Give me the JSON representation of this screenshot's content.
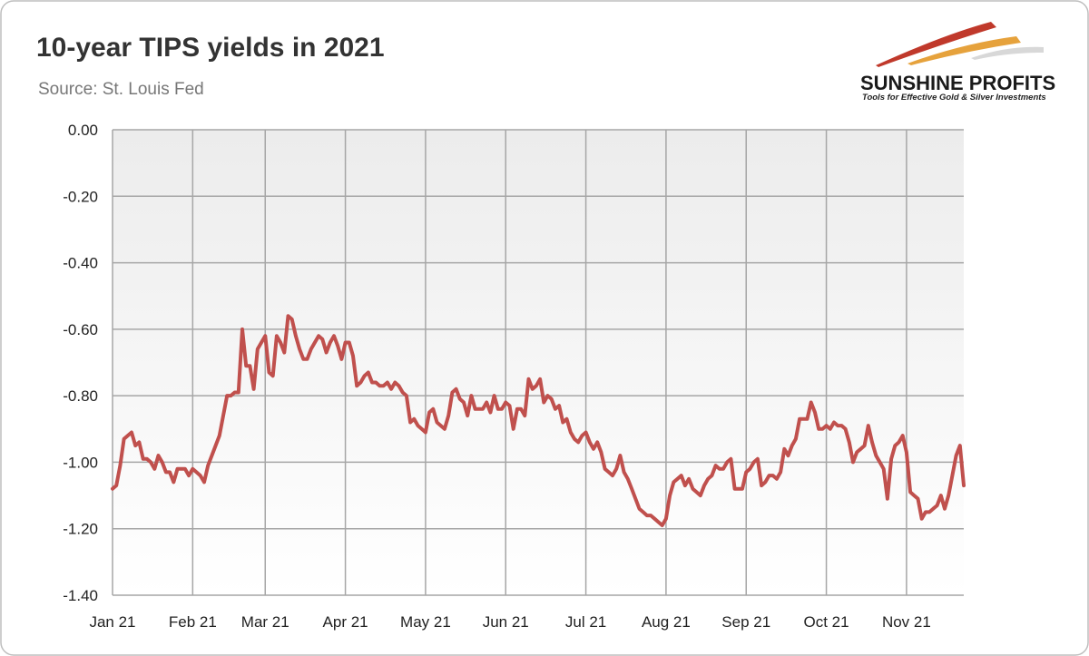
{
  "chart_data": {
    "type": "line",
    "title": "10-year TIPS yields in 2021",
    "subtitle": "Source: St. Louis Fed",
    "logo": "SUNSHINE PROFITS",
    "tagline": "Tools for Effective Gold & Silver Investments",
    "color": "#c0504d",
    "grid": true,
    "values": [
      -1.08,
      -1.07,
      -1.01,
      -0.93,
      -0.92,
      -0.91,
      -0.95,
      -0.94,
      -0.99,
      -0.99,
      -1.0,
      -1.02,
      -0.98,
      -1.0,
      -1.03,
      -1.03,
      -1.06,
      -1.02,
      -1.02,
      -1.02,
      -1.04,
      -1.02,
      -1.03,
      -1.04,
      -1.06,
      -1.01,
      -0.98,
      -0.95,
      -0.92,
      -0.86,
      -0.8,
      -0.8,
      -0.79,
      -0.79,
      -0.6,
      -0.71,
      -0.71,
      -0.78,
      -0.66,
      -0.64,
      -0.62,
      -0.73,
      -0.74,
      -0.62,
      -0.64,
      -0.67,
      -0.56,
      -0.57,
      -0.62,
      -0.66,
      -0.69,
      -0.69,
      -0.66,
      -0.64,
      -0.62,
      -0.63,
      -0.67,
      -0.64,
      -0.62,
      -0.65,
      -0.69,
      -0.64,
      -0.64,
      -0.68,
      -0.77,
      -0.76,
      -0.74,
      -0.73,
      -0.76,
      -0.76,
      -0.77,
      -0.77,
      -0.76,
      -0.78,
      -0.76,
      -0.77,
      -0.79,
      -0.8,
      -0.88,
      -0.87,
      -0.89,
      -0.9,
      -0.91,
      -0.85,
      -0.84,
      -0.88,
      -0.89,
      -0.9,
      -0.86,
      -0.79,
      -0.78,
      -0.81,
      -0.82,
      -0.86,
      -0.8,
      -0.84,
      -0.84,
      -0.84,
      -0.82,
      -0.85,
      -0.8,
      -0.84,
      -0.84,
      -0.82,
      -0.83,
      -0.9,
      -0.84,
      -0.84,
      -0.86,
      -0.75,
      -0.78,
      -0.77,
      -0.75,
      -0.82,
      -0.8,
      -0.81,
      -0.84,
      -0.83,
      -0.88,
      -0.87,
      -0.91,
      -0.93,
      -0.94,
      -0.92,
      -0.91,
      -0.94,
      -0.96,
      -0.94,
      -0.97,
      -1.02,
      -1.03,
      -1.04,
      -1.02,
      -0.98,
      -1.03,
      -1.05,
      -1.08,
      -1.11,
      -1.14,
      -1.15,
      -1.16,
      -1.16,
      -1.17,
      -1.18,
      -1.19,
      -1.17,
      -1.1,
      -1.06,
      -1.05,
      -1.04,
      -1.07,
      -1.05,
      -1.08,
      -1.09,
      -1.1,
      -1.07,
      -1.05,
      -1.04,
      -1.01,
      -1.02,
      -1.02,
      -1.0,
      -0.99,
      -1.08,
      -1.08,
      -1.08,
      -1.03,
      -1.02,
      -1.0,
      -0.99,
      -1.07,
      -1.06,
      -1.04,
      -1.04,
      -1.05,
      -1.03,
      -0.96,
      -0.98,
      -0.95,
      -0.93,
      -0.87,
      -0.87,
      -0.87,
      -0.82,
      -0.85,
      -0.9,
      -0.9,
      -0.89,
      -0.9,
      -0.88,
      -0.89,
      -0.89,
      -0.9,
      -0.94,
      -1.0,
      -0.97,
      -0.96,
      -0.95,
      -0.89,
      -0.94,
      -0.98,
      -1.0,
      -1.02,
      -1.11,
      -0.99,
      -0.95,
      -0.94,
      -0.92,
      -0.97,
      -1.09,
      -1.1,
      -1.11,
      -1.17,
      -1.15,
      -1.15,
      -1.14,
      -1.13,
      -1.1,
      -1.14,
      -1.1,
      -1.04,
      -0.98,
      -0.95,
      -1.07
    ],
    "xlim": [
      0,
      223
    ],
    "xticks": [
      {
        "value": 0,
        "label": "Jan 21"
      },
      {
        "value": 21,
        "label": "Feb 21"
      },
      {
        "value": 40,
        "label": "Mar 21"
      },
      {
        "value": 61,
        "label": "Apr 21"
      },
      {
        "value": 82,
        "label": "May 21"
      },
      {
        "value": 103,
        "label": "Jun 21"
      },
      {
        "value": 124,
        "label": "Jul 21"
      },
      {
        "value": 145,
        "label": "Aug 21"
      },
      {
        "value": 166,
        "label": "Sep 21"
      },
      {
        "value": 187,
        "label": "Oct 21"
      },
      {
        "value": 208,
        "label": "Nov 21"
      }
    ],
    "ylim": [
      -1.4,
      0
    ],
    "yticks": [
      {
        "value": 0,
        "label": "0.00"
      },
      {
        "value": -0.2,
        "label": "-0.20"
      },
      {
        "value": -0.4,
        "label": "-0.40"
      },
      {
        "value": -0.6,
        "label": "-0.60"
      },
      {
        "value": -0.8,
        "label": "-0.80"
      },
      {
        "value": -1.0,
        "label": "-1.00"
      },
      {
        "value": -1.2,
        "label": "-1.20"
      },
      {
        "value": -1.4,
        "label": "-1.40"
      }
    ]
  }
}
